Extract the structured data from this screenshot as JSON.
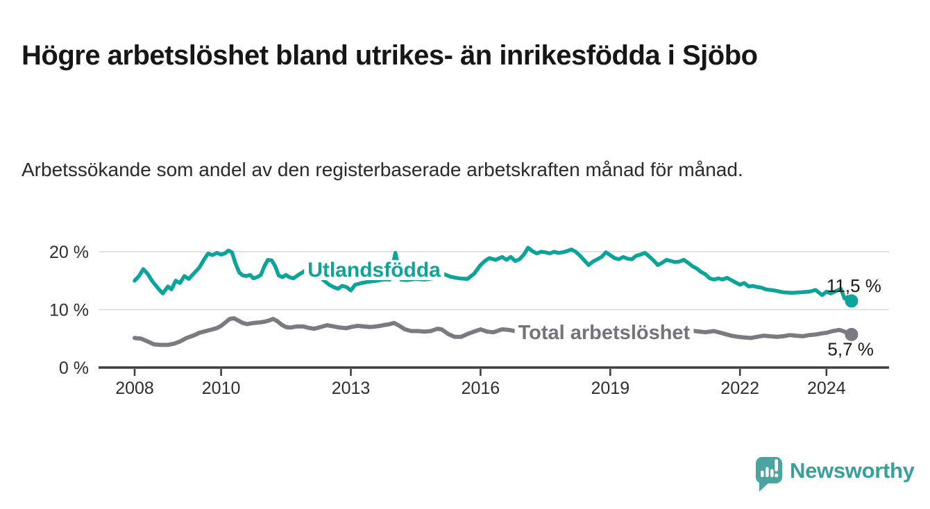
{
  "header": {
    "title": "Högre arbetslöshet bland utrikes- än inrikesfödda i Sjöbo",
    "subtitle": "Arbetssökande som andel av den registerbaserade arbetskraften månad för månad."
  },
  "colors": {
    "teal_line": "#0ca39a",
    "gray_line": "#7c7980",
    "teal_label": "#0ca39a",
    "gray_label": "#757279",
    "grid": "#d9d9d9",
    "axis": "#3f3f3f",
    "tick_text": "#2e2e2e",
    "value_text": "#1a1a1a",
    "logo_bubble": "#4aa5a1",
    "logo_text": "#38a09c",
    "background": "#ffffff"
  },
  "chart_data": {
    "type": "line",
    "title": "",
    "xlabel": "",
    "ylabel": "",
    "y_unit": "percent of registered labour force",
    "x_unit": "year (decimal = month)",
    "ylim": [
      0,
      22
    ],
    "xlim": [
      2007.2,
      2025.4
    ],
    "grid": "horizontal",
    "legend_position": "inline-labels",
    "y_ticks": [
      {
        "v": 0,
        "label": "0 %"
      },
      {
        "v": 10,
        "label": "10 %"
      },
      {
        "v": 20,
        "label": "20 %"
      }
    ],
    "x_ticks": [
      {
        "v": 2008,
        "label": "2008"
      },
      {
        "v": 2010,
        "label": "2010"
      },
      {
        "v": 2013,
        "label": "2013"
      },
      {
        "v": 2016,
        "label": "2016"
      },
      {
        "v": 2019,
        "label": "2019"
      },
      {
        "v": 2022,
        "label": "2022"
      },
      {
        "v": 2024,
        "label": "2024"
      }
    ],
    "series": [
      {
        "name": "Utlandsfödda",
        "color": "#0ca39a",
        "stroke_width": 5.5,
        "end_value": 11.5,
        "end_label": "11,5 %",
        "end_label_anchor": "end",
        "end_label_offset": [
          43,
          -13
        ],
        "points": [
          [
            2008.0,
            15.0
          ],
          [
            2008.1,
            15.8
          ],
          [
            2008.2,
            17.0
          ],
          [
            2008.3,
            16.2
          ],
          [
            2008.4,
            15.0
          ],
          [
            2008.55,
            13.6
          ],
          [
            2008.65,
            12.8
          ],
          [
            2008.77,
            14.0
          ],
          [
            2008.85,
            13.5
          ],
          [
            2008.95,
            15.0
          ],
          [
            2009.05,
            14.6
          ],
          [
            2009.15,
            15.8
          ],
          [
            2009.25,
            15.3
          ],
          [
            2009.4,
            16.5
          ],
          [
            2009.5,
            17.3
          ],
          [
            2009.6,
            18.6
          ],
          [
            2009.7,
            19.7
          ],
          [
            2009.8,
            19.4
          ],
          [
            2009.9,
            19.8
          ],
          [
            2010.0,
            19.5
          ],
          [
            2010.08,
            19.7
          ],
          [
            2010.17,
            20.2
          ],
          [
            2010.25,
            19.9
          ],
          [
            2010.33,
            18.0
          ],
          [
            2010.42,
            16.4
          ],
          [
            2010.5,
            15.9
          ],
          [
            2010.58,
            15.8
          ],
          [
            2010.67,
            16.0
          ],
          [
            2010.75,
            15.4
          ],
          [
            2010.83,
            15.6
          ],
          [
            2010.92,
            16.0
          ],
          [
            2011.0,
            17.5
          ],
          [
            2011.08,
            18.6
          ],
          [
            2011.17,
            18.5
          ],
          [
            2011.25,
            17.5
          ],
          [
            2011.33,
            15.9
          ],
          [
            2011.42,
            15.6
          ],
          [
            2011.5,
            16.0
          ],
          [
            2011.58,
            15.6
          ],
          [
            2011.67,
            15.4
          ],
          [
            2011.75,
            15.8
          ],
          [
            2011.83,
            16.2
          ],
          [
            2011.92,
            16.6
          ],
          [
            2012.0,
            17.2
          ],
          [
            2012.08,
            18.1
          ],
          [
            2012.2,
            16.6
          ],
          [
            2012.35,
            15.2
          ],
          [
            2012.5,
            14.3
          ],
          [
            2012.6,
            13.9
          ],
          [
            2012.7,
            13.6
          ],
          [
            2012.8,
            14.1
          ],
          [
            2012.9,
            13.9
          ],
          [
            2013.0,
            13.3
          ],
          [
            2013.1,
            14.3
          ],
          [
            2013.25,
            14.6
          ],
          [
            2013.4,
            14.8
          ],
          [
            2013.6,
            15.0
          ],
          [
            2013.75,
            15.2
          ],
          [
            2013.9,
            15.2
          ],
          [
            2014.03,
            19.8
          ],
          [
            2014.16,
            15.2
          ],
          [
            2014.3,
            15.1
          ],
          [
            2014.5,
            15.3
          ],
          [
            2014.7,
            15.2
          ],
          [
            2014.9,
            15.4
          ],
          [
            2015.1,
            16.3
          ],
          [
            2015.3,
            15.7
          ],
          [
            2015.5,
            15.4
          ],
          [
            2015.7,
            15.3
          ],
          [
            2015.85,
            16.2
          ],
          [
            2016.0,
            17.7
          ],
          [
            2016.1,
            18.4
          ],
          [
            2016.2,
            18.9
          ],
          [
            2016.35,
            18.6
          ],
          [
            2016.5,
            19.1
          ],
          [
            2016.6,
            18.6
          ],
          [
            2016.7,
            19.1
          ],
          [
            2016.8,
            18.4
          ],
          [
            2016.9,
            18.7
          ],
          [
            2017.0,
            19.5
          ],
          [
            2017.1,
            20.7
          ],
          [
            2017.2,
            20.1
          ],
          [
            2017.3,
            19.7
          ],
          [
            2017.4,
            20.0
          ],
          [
            2017.5,
            19.9
          ],
          [
            2017.6,
            19.7
          ],
          [
            2017.7,
            20.0
          ],
          [
            2017.8,
            19.8
          ],
          [
            2017.9,
            19.9
          ],
          [
            2018.0,
            20.1
          ],
          [
            2018.1,
            20.4
          ],
          [
            2018.2,
            20.0
          ],
          [
            2018.3,
            19.3
          ],
          [
            2018.4,
            18.5
          ],
          [
            2018.5,
            17.7
          ],
          [
            2018.6,
            18.3
          ],
          [
            2018.7,
            18.7
          ],
          [
            2018.8,
            19.1
          ],
          [
            2018.9,
            19.9
          ],
          [
            2019.0,
            19.4
          ],
          [
            2019.1,
            18.9
          ],
          [
            2019.2,
            18.7
          ],
          [
            2019.3,
            19.1
          ],
          [
            2019.4,
            18.8
          ],
          [
            2019.5,
            18.7
          ],
          [
            2019.6,
            19.3
          ],
          [
            2019.7,
            19.5
          ],
          [
            2019.8,
            19.8
          ],
          [
            2019.9,
            19.2
          ],
          [
            2020.0,
            18.5
          ],
          [
            2020.1,
            17.7
          ],
          [
            2020.2,
            18.1
          ],
          [
            2020.3,
            18.6
          ],
          [
            2020.4,
            18.4
          ],
          [
            2020.5,
            18.2
          ],
          [
            2020.6,
            18.3
          ],
          [
            2020.7,
            18.6
          ],
          [
            2020.8,
            18.1
          ],
          [
            2020.9,
            17.5
          ],
          [
            2021.0,
            17.1
          ],
          [
            2021.1,
            16.5
          ],
          [
            2021.2,
            16.1
          ],
          [
            2021.3,
            15.4
          ],
          [
            2021.4,
            15.2
          ],
          [
            2021.5,
            15.4
          ],
          [
            2021.6,
            15.2
          ],
          [
            2021.7,
            15.5
          ],
          [
            2021.8,
            15.1
          ],
          [
            2021.9,
            14.7
          ],
          [
            2022.0,
            14.3
          ],
          [
            2022.1,
            14.6
          ],
          [
            2022.2,
            14.0
          ],
          [
            2022.3,
            14.1
          ],
          [
            2022.4,
            13.9
          ],
          [
            2022.5,
            13.8
          ],
          [
            2022.6,
            13.5
          ],
          [
            2022.8,
            13.3
          ],
          [
            2023.0,
            13.0
          ],
          [
            2023.2,
            12.9
          ],
          [
            2023.4,
            13.0
          ],
          [
            2023.6,
            13.1
          ],
          [
            2023.75,
            13.4
          ],
          [
            2023.9,
            12.5
          ],
          [
            2024.0,
            13.1
          ],
          [
            2024.1,
            12.8
          ],
          [
            2024.25,
            13.3
          ],
          [
            2024.33,
            13.6
          ],
          [
            2024.42,
            11.9
          ],
          [
            2024.5,
            12.2
          ],
          [
            2024.58,
            11.5
          ]
        ]
      },
      {
        "name": "Total arbetslöshet",
        "color": "#7c7980",
        "stroke_width": 6,
        "end_value": 5.7,
        "end_label": "5,7 %",
        "end_label_anchor": "end",
        "end_label_offset": [
          32,
          30
        ],
        "points": [
          [
            2008.0,
            5.1
          ],
          [
            2008.15,
            5.0
          ],
          [
            2008.3,
            4.5
          ],
          [
            2008.45,
            4.0
          ],
          [
            2008.6,
            3.9
          ],
          [
            2008.75,
            3.9
          ],
          [
            2008.9,
            4.1
          ],
          [
            2009.05,
            4.5
          ],
          [
            2009.2,
            5.1
          ],
          [
            2009.35,
            5.5
          ],
          [
            2009.5,
            6.0
          ],
          [
            2009.65,
            6.3
          ],
          [
            2009.8,
            6.6
          ],
          [
            2009.9,
            6.8
          ],
          [
            2010.0,
            7.2
          ],
          [
            2010.1,
            7.8
          ],
          [
            2010.2,
            8.4
          ],
          [
            2010.3,
            8.5
          ],
          [
            2010.4,
            8.1
          ],
          [
            2010.5,
            7.7
          ],
          [
            2010.6,
            7.5
          ],
          [
            2010.75,
            7.7
          ],
          [
            2010.9,
            7.8
          ],
          [
            2011.0,
            7.9
          ],
          [
            2011.1,
            8.1
          ],
          [
            2011.2,
            8.4
          ],
          [
            2011.3,
            8.0
          ],
          [
            2011.4,
            7.4
          ],
          [
            2011.5,
            7.0
          ],
          [
            2011.6,
            6.9
          ],
          [
            2011.75,
            7.1
          ],
          [
            2011.9,
            7.1
          ],
          [
            2012.0,
            6.9
          ],
          [
            2012.15,
            6.7
          ],
          [
            2012.3,
            7.0
          ],
          [
            2012.45,
            7.3
          ],
          [
            2012.6,
            7.1
          ],
          [
            2012.75,
            6.9
          ],
          [
            2012.9,
            6.8
          ],
          [
            2013.0,
            7.0
          ],
          [
            2013.15,
            7.2
          ],
          [
            2013.3,
            7.1
          ],
          [
            2013.45,
            7.0
          ],
          [
            2013.6,
            7.1
          ],
          [
            2013.75,
            7.3
          ],
          [
            2013.9,
            7.5
          ],
          [
            2014.0,
            7.7
          ],
          [
            2014.1,
            7.3
          ],
          [
            2014.25,
            6.6
          ],
          [
            2014.4,
            6.3
          ],
          [
            2014.55,
            6.3
          ],
          [
            2014.7,
            6.2
          ],
          [
            2014.85,
            6.3
          ],
          [
            2015.0,
            6.7
          ],
          [
            2015.1,
            6.6
          ],
          [
            2015.25,
            5.8
          ],
          [
            2015.4,
            5.3
          ],
          [
            2015.55,
            5.3
          ],
          [
            2015.7,
            5.8
          ],
          [
            2015.85,
            6.2
          ],
          [
            2016.0,
            6.6
          ],
          [
            2016.15,
            6.2
          ],
          [
            2016.3,
            6.1
          ],
          [
            2016.5,
            6.6
          ],
          [
            2016.65,
            6.5
          ],
          [
            2016.8,
            6.3
          ],
          [
            2016.95,
            6.4
          ],
          [
            2017.2,
            6.2
          ],
          [
            2017.5,
            6.0
          ],
          [
            2017.8,
            6.1
          ],
          [
            2018.1,
            5.9
          ],
          [
            2018.4,
            6.0
          ],
          [
            2018.7,
            5.9
          ],
          [
            2019.0,
            6.0
          ],
          [
            2019.3,
            6.1
          ],
          [
            2019.6,
            6.0
          ],
          [
            2019.9,
            6.2
          ],
          [
            2020.2,
            6.6
          ],
          [
            2020.45,
            6.8
          ],
          [
            2020.7,
            6.6
          ],
          [
            2020.95,
            6.3
          ],
          [
            2021.2,
            6.1
          ],
          [
            2021.4,
            6.3
          ],
          [
            2021.6,
            5.9
          ],
          [
            2021.8,
            5.5
          ],
          [
            2021.95,
            5.3
          ],
          [
            2022.1,
            5.2
          ],
          [
            2022.25,
            5.1
          ],
          [
            2022.4,
            5.3
          ],
          [
            2022.55,
            5.5
          ],
          [
            2022.7,
            5.4
          ],
          [
            2022.85,
            5.3
          ],
          [
            2023.0,
            5.4
          ],
          [
            2023.15,
            5.6
          ],
          [
            2023.3,
            5.5
          ],
          [
            2023.45,
            5.4
          ],
          [
            2023.6,
            5.6
          ],
          [
            2023.75,
            5.7
          ],
          [
            2023.9,
            5.9
          ],
          [
            2024.0,
            6.0
          ],
          [
            2024.15,
            6.3
          ],
          [
            2024.3,
            6.5
          ],
          [
            2024.42,
            6.2
          ],
          [
            2024.5,
            5.8
          ],
          [
            2024.58,
            5.7
          ]
        ]
      }
    ],
    "annotations": [
      {
        "text": "Utlandsfödda",
        "t": 2012.0,
        "v": 15.7,
        "color": "#0ca39a",
        "font_size": 30
      },
      {
        "text": "Total arbetslöshet",
        "t": 2016.87,
        "v": 4.9,
        "color": "#757279",
        "font_size": 29
      }
    ]
  },
  "footer": {
    "brand": "Newsworthy"
  }
}
